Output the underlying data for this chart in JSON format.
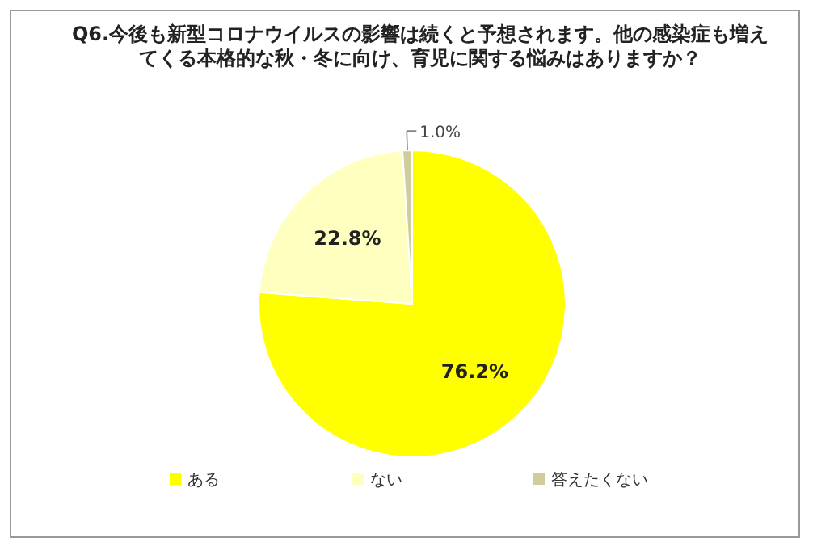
{
  "chart_data": {
    "type": "pie",
    "title": "Q6.今後も新型コロナウイルスの影響は続くと予想されます。他の感染症も増えてくる本格的な秋・冬に向け、育児に関する悩みはありますか？",
    "categories": [
      "ある",
      "ない",
      "答えたくない"
    ],
    "values": [
      76.2,
      22.8,
      1.0
    ],
    "colors": [
      "#ffff00",
      "#ffffc0",
      "#d0cc9c"
    ],
    "value_labels": [
      "76.2%",
      "22.8%",
      "1.0%"
    ],
    "legend": "bottom"
  }
}
